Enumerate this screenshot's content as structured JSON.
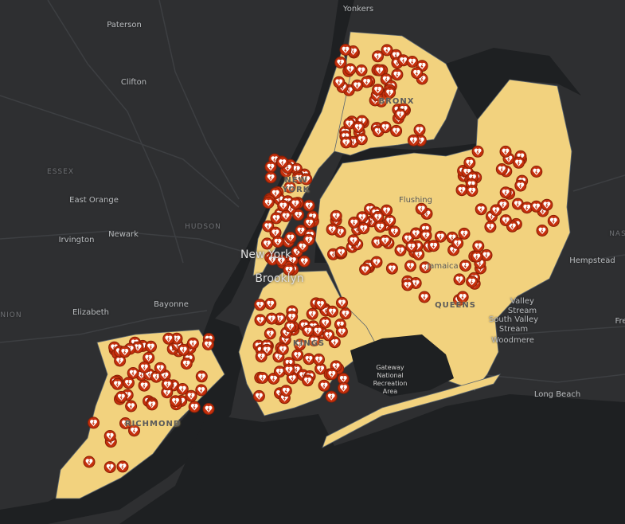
{
  "map": {
    "colors": {
      "background": "#2e2f31",
      "water": "#1e2022",
      "nyc_fill": "#f2d27e",
      "boundary": "#5b6670",
      "marker_fill": "#c5300d",
      "marker_ring": "#ffffff"
    },
    "marker_icon": "heart-pin-icon",
    "place_labels": [
      {
        "text": "Yonkers"
      },
      {
        "text": "Paterson"
      },
      {
        "text": "Clifton"
      },
      {
        "text": "ESSEX"
      },
      {
        "text": "East Orange"
      },
      {
        "text": "Newark"
      },
      {
        "text": "HUDSON"
      },
      {
        "text": "Irvington"
      },
      {
        "text": "Elizabeth"
      },
      {
        "text": "Bayonne"
      },
      {
        "text": "NION"
      },
      {
        "text": "New York"
      },
      {
        "text": "Brooklyn"
      },
      {
        "text": "Hempstead"
      },
      {
        "text": "NAS"
      },
      {
        "text": "Valley Stream"
      },
      {
        "text": "South Valley Stream"
      },
      {
        "text": "Woodmere"
      },
      {
        "text": "Fre"
      },
      {
        "text": "Long Beach"
      },
      {
        "text": "Gateway National Recreation Area"
      },
      {
        "text": "Flushing"
      },
      {
        "text": "Jamaica"
      }
    ],
    "borough_labels": [
      "BRONX",
      "NEW YORK",
      "QUEENS",
      "KINGS",
      "RICHMOND"
    ]
  }
}
